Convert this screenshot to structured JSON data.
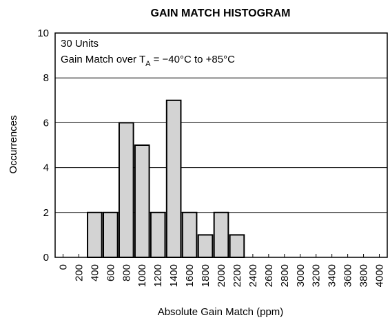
{
  "chart_data": {
    "type": "bar",
    "title": "GAIN MATCH HISTOGRAM",
    "xlabel": "Absolute Gain Match (ppm)",
    "ylabel": "Occurrences",
    "annotations": [
      "30 Units",
      [
        "Gain Match over T",
        "A",
        " = −40°C to +85°C"
      ]
    ],
    "x": [
      400,
      600,
      800,
      1000,
      1200,
      1400,
      1600,
      1800,
      2000,
      2200
    ],
    "values": [
      2,
      2,
      6,
      5,
      2,
      7,
      2,
      1,
      2,
      1
    ],
    "color": "#d3d3d3",
    "xlim": [
      -100,
      4100
    ],
    "xticks": [
      0,
      200,
      400,
      600,
      800,
      1000,
      1200,
      1400,
      1600,
      1800,
      2000,
      2200,
      2400,
      2600,
      2800,
      3000,
      3200,
      3400,
      3600,
      3800,
      4000
    ],
    "ylim": [
      0,
      10
    ],
    "yticks": [
      0,
      2,
      4,
      6,
      8,
      10
    ],
    "grid": true
  }
}
